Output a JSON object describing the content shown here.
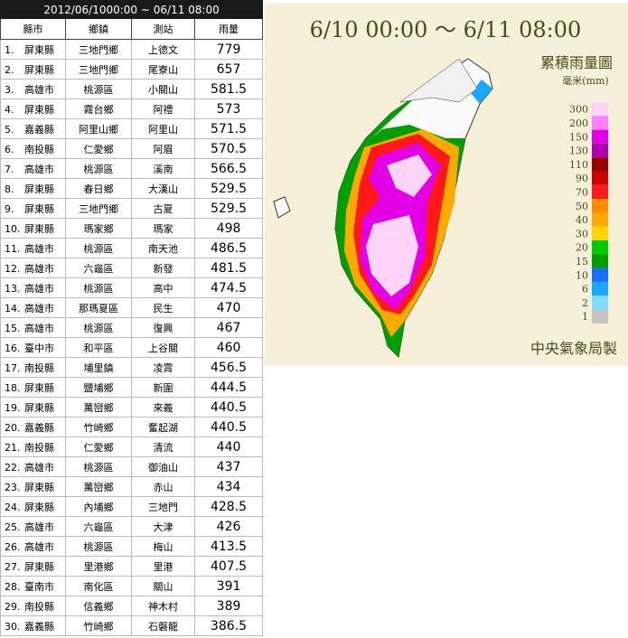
{
  "table": {
    "title": "2012/06/1000:00 ~ 06/11 08:00",
    "headers": [
      "縣市",
      "鄉鎮",
      "測站",
      "雨量"
    ],
    "rows": [
      [
        "1.",
        "屏東縣",
        "三地門鄉",
        "上德文",
        "779"
      ],
      [
        "2.",
        "屏東縣",
        "三地門鄉",
        "尾寮山",
        "657"
      ],
      [
        "3.",
        "高雄市",
        "桃源區",
        "小關山",
        "581.5"
      ],
      [
        "4.",
        "屏東縣",
        "霧台鄉",
        "阿禮",
        "573"
      ],
      [
        "5.",
        "嘉義縣",
        "阿里山鄉",
        "阿里山",
        "571.5"
      ],
      [
        "6.",
        "南投縣",
        "仁愛鄉",
        "阿眉",
        "570.5"
      ],
      [
        "7.",
        "高雄市",
        "桃源區",
        "溪南",
        "566.5"
      ],
      [
        "8.",
        "屏東縣",
        "春日鄉",
        "大漢山",
        "529.5"
      ],
      [
        "9.",
        "屏東縣",
        "三地門鄉",
        "古夏",
        "529.5"
      ],
      [
        "10.",
        "屏東縣",
        "瑪家鄉",
        "瑪家",
        "498"
      ],
      [
        "11.",
        "高雄市",
        "桃源區",
        "南天池",
        "486.5"
      ],
      [
        "12.",
        "高雄市",
        "六龜區",
        "新發",
        "481.5"
      ],
      [
        "13.",
        "高雄市",
        "桃源區",
        "高中",
        "474.5"
      ],
      [
        "14.",
        "高雄市",
        "那瑪夏區",
        "民生",
        "470"
      ],
      [
        "15.",
        "高雄市",
        "桃源區",
        "復興",
        "467"
      ],
      [
        "16.",
        "臺中市",
        "和平區",
        "上谷關",
        "460"
      ],
      [
        "17.",
        "南投縣",
        "埔里鎮",
        "凌霄",
        "456.5"
      ],
      [
        "18.",
        "屏東縣",
        "鹽埔鄉",
        "新圍",
        "444.5"
      ],
      [
        "19.",
        "屏東縣",
        "萬巒鄉",
        "來義",
        "440.5"
      ],
      [
        "20.",
        "嘉義縣",
        "竹崎鄉",
        "奮起湖",
        "440.5"
      ],
      [
        "21.",
        "南投縣",
        "仁愛鄉",
        "清流",
        "440"
      ],
      [
        "22.",
        "高雄市",
        "桃源區",
        "御油山",
        "437"
      ],
      [
        "23.",
        "屏東縣",
        "萬巒鄉",
        "赤山",
        "434"
      ],
      [
        "24.",
        "屏東縣",
        "內埔鄉",
        "三地門",
        "428.5"
      ],
      [
        "25.",
        "高雄市",
        "六龜區",
        "大津",
        "426"
      ],
      [
        "26.",
        "高雄市",
        "桃源區",
        "梅山",
        "413.5"
      ],
      [
        "27.",
        "屏東縣",
        "里港鄉",
        "里港",
        "407.5"
      ],
      [
        "28.",
        "臺南市",
        "南化區",
        "關山",
        "391"
      ],
      [
        "29.",
        "南投縣",
        "信義鄉",
        "神木村",
        "389"
      ],
      [
        "30.",
        "嘉義縣",
        "竹崎鄉",
        "石磐龍",
        "386.5"
      ]
    ]
  },
  "map": {
    "title": "6/10 00:00 ～ 6/11 08:00",
    "legend_title": "累積雨量圖",
    "unit": "毫米(mm)",
    "credit": "中央氣象局製",
    "legend": [
      {
        "label": "300",
        "color": "#fcd4f8"
      },
      {
        "label": "200",
        "color": "#ff7fff"
      },
      {
        "label": "150",
        "color": "#e400e4"
      },
      {
        "label": "130",
        "color": "#b000b0"
      },
      {
        "label": "110",
        "color": "#9a0000"
      },
      {
        "label": "90",
        "color": "#cc0000"
      },
      {
        "label": "70",
        "color": "#ff1a1a"
      },
      {
        "label": "50",
        "color": "#ff8c00"
      },
      {
        "label": "40",
        "color": "#ffaa00"
      },
      {
        "label": "30",
        "color": "#ffd400"
      },
      {
        "label": "20",
        "color": "#00cc00"
      },
      {
        "label": "15",
        "color": "#009e00"
      },
      {
        "label": "10",
        "color": "#1a6cff"
      },
      {
        "label": "6",
        "color": "#19a8ff"
      },
      {
        "label": "2",
        "color": "#7fdcff"
      },
      {
        "label": "1",
        "color": "#c4c4c4"
      }
    ]
  }
}
